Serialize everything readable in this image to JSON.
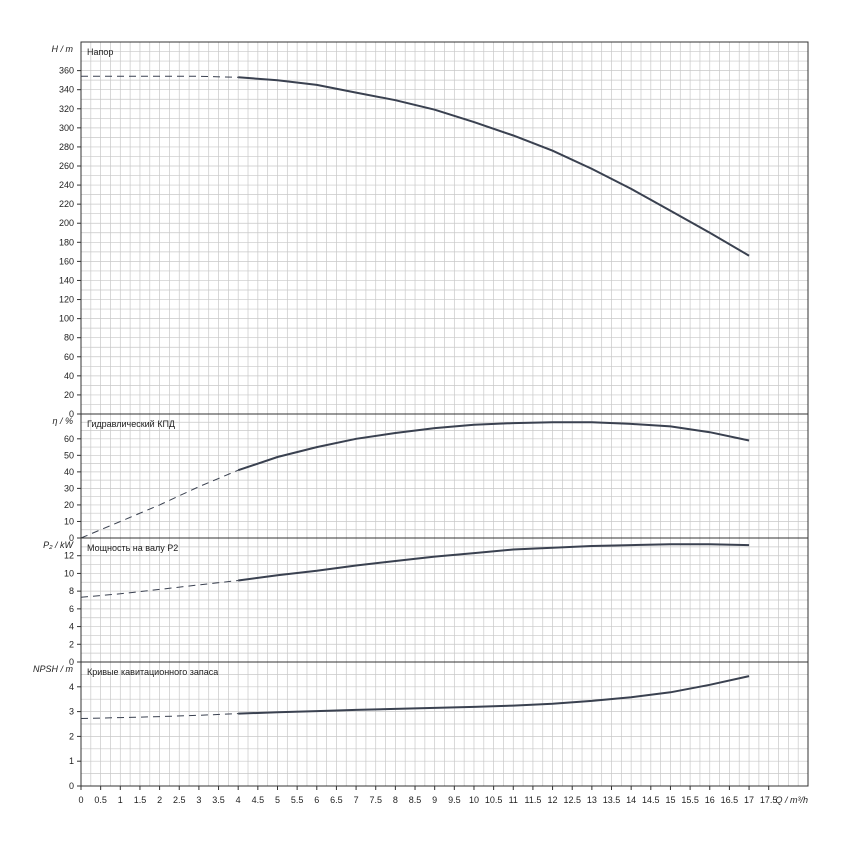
{
  "chart_data": {
    "type": "line",
    "x_axis": {
      "label": "Q / m³/h",
      "range": [
        0,
        18.5
      ],
      "ticks": [
        "0",
        "0.5",
        "1",
        "1.5",
        "2",
        "2.5",
        "3",
        "3.5",
        "4",
        "4.5",
        "5",
        "5.5",
        "6",
        "6.5",
        "7",
        "7.5",
        "8",
        "8.5",
        "9",
        "9.5",
        "10",
        "10.5",
        "11",
        "11.5",
        "12",
        "12.5",
        "13",
        "13.5",
        "14",
        "14.5",
        "15",
        "15.5",
        "16",
        "16.5",
        "17",
        "17.5"
      ]
    },
    "panels": [
      {
        "id": "head",
        "title": "Напор",
        "ylabel": "H / m",
        "ylim": [
          0,
          390
        ],
        "yticks": [
          0,
          20,
          40,
          60,
          80,
          100,
          120,
          140,
          160,
          180,
          200,
          220,
          240,
          260,
          280,
          300,
          320,
          340,
          360
        ],
        "dashed": {
          "x": [
            0,
            1,
            2,
            3,
            4
          ],
          "y": [
            354,
            354,
            354,
            354,
            353
          ]
        },
        "solid": {
          "x": [
            4,
            5,
            6,
            7,
            8,
            9,
            10,
            11,
            12,
            13,
            14,
            15,
            16,
            17
          ],
          "y": [
            353,
            350,
            345,
            337,
            329,
            319,
            306,
            292,
            276,
            257,
            236,
            213,
            190,
            166
          ]
        }
      },
      {
        "id": "efficiency",
        "title": "Гидравлический КПД",
        "ylabel": "η / %",
        "ylim": [
          0,
          75
        ],
        "yticks": [
          0,
          10,
          20,
          30,
          40,
          50,
          60
        ],
        "dashed": {
          "x": [
            0,
            1,
            2,
            3,
            4
          ],
          "y": [
            0,
            10,
            20,
            31,
            41
          ]
        },
        "solid": {
          "x": [
            4,
            5,
            6,
            7,
            8,
            9,
            10,
            11,
            12,
            13,
            14,
            15,
            16,
            17
          ],
          "y": [
            41,
            49,
            55,
            60,
            63.5,
            66.5,
            68.5,
            69.5,
            70,
            70,
            69,
            67.5,
            64,
            59
          ]
        }
      },
      {
        "id": "power",
        "title": "Мощность на валу P2",
        "ylabel": "P₂ / kW",
        "ylim": [
          0,
          14
        ],
        "yticks": [
          0,
          2,
          4,
          6,
          8,
          10,
          12
        ],
        "dashed": {
          "x": [
            0,
            1,
            2,
            3,
            4
          ],
          "y": [
            7.3,
            7.7,
            8.2,
            8.7,
            9.2
          ]
        },
        "solid": {
          "x": [
            4,
            5,
            6,
            7,
            8,
            9,
            10,
            11,
            12,
            13,
            14,
            15,
            16,
            17
          ],
          "y": [
            9.2,
            9.8,
            10.3,
            10.9,
            11.4,
            11.9,
            12.3,
            12.7,
            12.9,
            13.1,
            13.2,
            13.3,
            13.3,
            13.2
          ]
        }
      },
      {
        "id": "npsh",
        "title": "Кривые кавитационного запаса",
        "ylabel": "NPSH / m",
        "ylim": [
          0,
          5
        ],
        "yticks": [
          0,
          1,
          2,
          3,
          4
        ],
        "dashed": {
          "x": [
            0,
            1,
            2,
            3,
            4
          ],
          "y": [
            2.72,
            2.76,
            2.8,
            2.85,
            2.92
          ]
        },
        "solid": {
          "x": [
            4,
            5,
            6,
            7,
            8,
            9,
            10,
            11,
            12,
            13,
            14,
            15,
            16,
            17
          ],
          "y": [
            2.92,
            2.97,
            3.02,
            3.07,
            3.11,
            3.15,
            3.19,
            3.24,
            3.32,
            3.43,
            3.58,
            3.78,
            4.08,
            4.43
          ]
        }
      }
    ],
    "grid": true,
    "colors": {
      "curve": "#3a4150",
      "grid": "#c8c8c8",
      "frame": "#333333"
    }
  }
}
